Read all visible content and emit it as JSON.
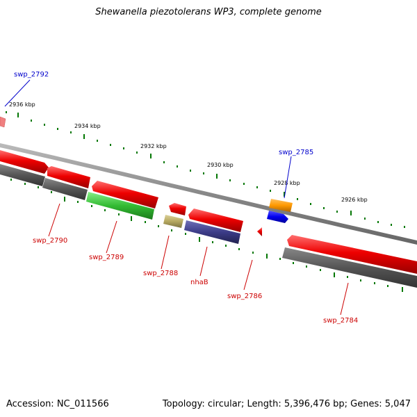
{
  "title": "Shewanella piezotolerans WP3, complete genome",
  "footer": {
    "accession": "Accession: NC_011566",
    "summary": "Topology: circular; Length: 5,396,476 bp; Genes: 5,047"
  },
  "scale_labels": [
    "2936 kbp",
    "2934 kbp",
    "2932 kbp",
    "2930 kbp",
    "2928 kbp",
    "2926 kbp"
  ],
  "gene_labels": [
    {
      "name": "swp_2792",
      "color": "#0000cc"
    },
    {
      "name": "swp_2785",
      "color": "#0000cc"
    },
    {
      "name": "swp_2790",
      "color": "#cc0000"
    },
    {
      "name": "swp_2789",
      "color": "#cc0000"
    },
    {
      "name": "swp_2788",
      "color": "#cc0000"
    },
    {
      "name": "nhaB",
      "color": "#cc0000"
    },
    {
      "name": "swp_2786",
      "color": "#cc0000"
    },
    {
      "name": "swp_2784",
      "color": "#cc0000"
    }
  ],
  "colors": {
    "cds_reverse": "#e60000",
    "gene_track": "#555555",
    "rrna_like": "#33bb33",
    "tan_feature": "#b5a860",
    "navy_feature": "#3c3c88",
    "forward_blue": "#0000ee",
    "forward_orange": "#ff9900",
    "scale_ticks": "#007700",
    "backbone": "#888888"
  }
}
